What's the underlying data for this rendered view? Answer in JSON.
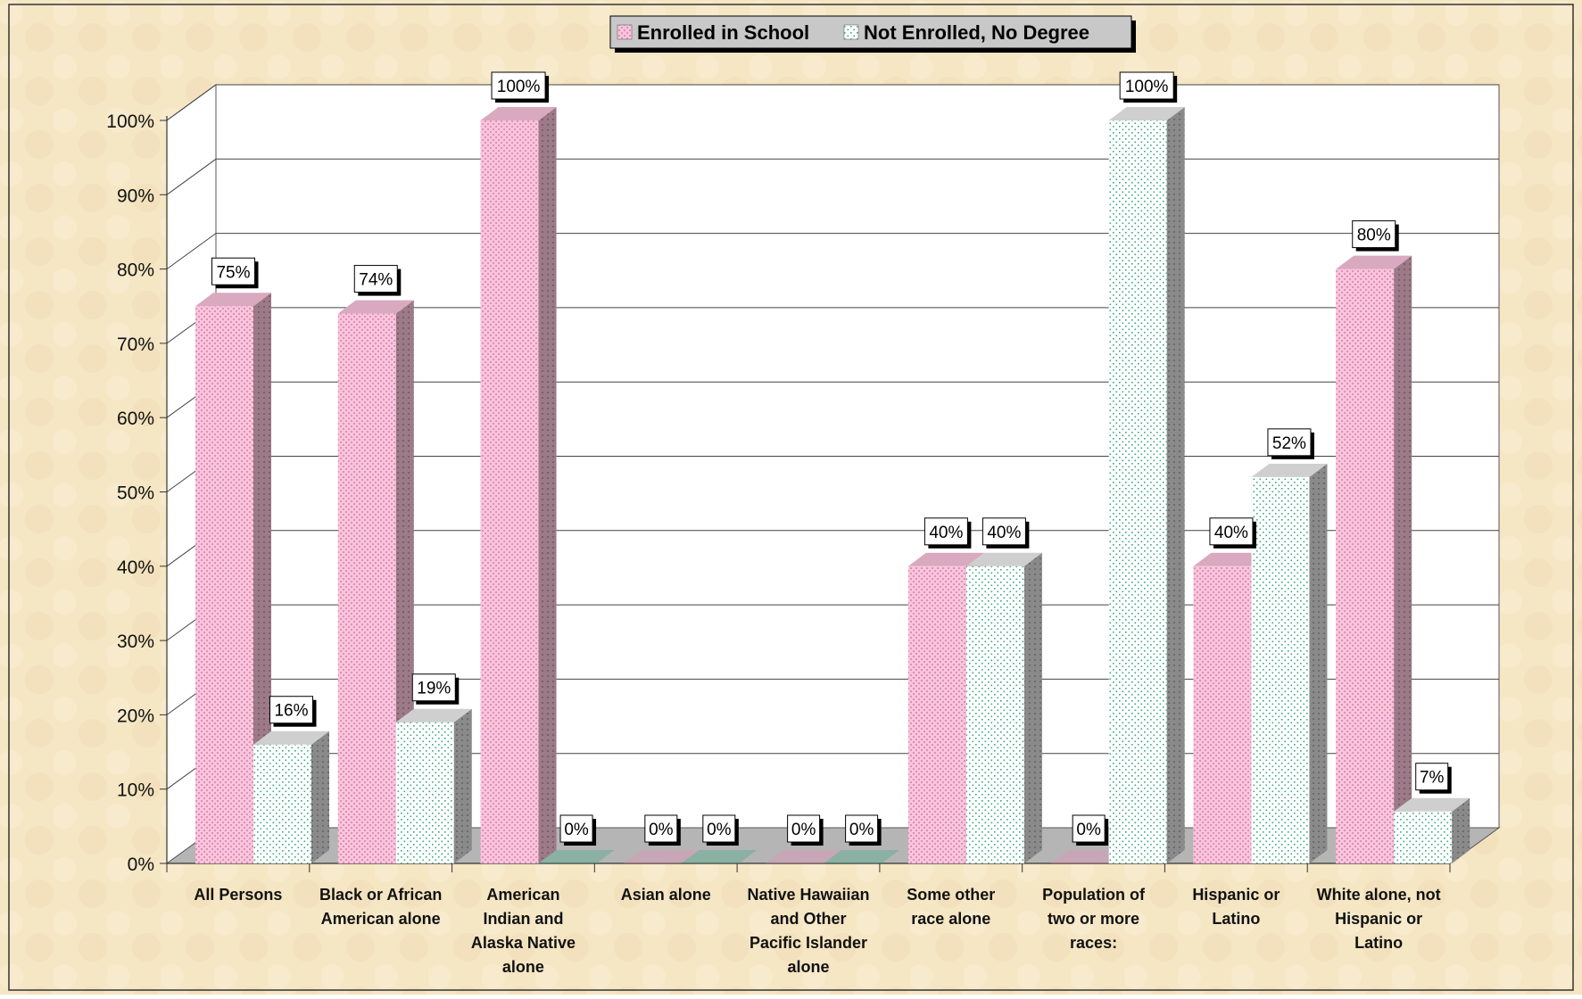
{
  "colors": {
    "background": "#f5e6c4",
    "plot_wall": "#ffffff",
    "floor": "#b5b5b5",
    "enrolled_fill": "#f6c6dc",
    "enrolled_dot": "#e98bb6",
    "enrolled_side": "#9c7a88",
    "enrolled_top": "#d9a9bf",
    "not_enrolled_fill": "#ffffff",
    "not_enrolled_dot": "#3aa882",
    "not_enrolled_side": "#8a8a8a",
    "not_enrolled_top": "#cfcfcf"
  },
  "chart_data": {
    "type": "bar",
    "title": "",
    "xlabel": "",
    "ylabel": "",
    "ylim": [
      0,
      100
    ],
    "y_ticks": [
      "0%",
      "10%",
      "20%",
      "30%",
      "40%",
      "50%",
      "60%",
      "70%",
      "80%",
      "90%",
      "100%"
    ],
    "legend_position": "top-center",
    "grid": true,
    "categories": [
      [
        "All Persons"
      ],
      [
        "Black or African",
        "American alone"
      ],
      [
        "American",
        "Indian and",
        "Alaska Native",
        "alone"
      ],
      [
        "Asian alone"
      ],
      [
        "Native Hawaiian",
        "and Other",
        "Pacific Islander",
        "alone"
      ],
      [
        "Some other",
        "race alone"
      ],
      [
        "Population of",
        "two or more",
        "races:"
      ],
      [
        "Hispanic or",
        "Latino"
      ],
      [
        "White alone, not",
        "Hispanic or",
        "Latino"
      ]
    ],
    "series": [
      {
        "name": "Enrolled in School",
        "values": [
          75,
          74,
          100,
          0,
          0,
          40,
          0,
          40,
          80
        ],
        "labels": [
          "75%",
          "74%",
          "100%",
          "0%",
          "0%",
          "40%",
          "0%",
          "40%",
          "80%"
        ]
      },
      {
        "name": "Not Enrolled, No Degree",
        "values": [
          16,
          19,
          0,
          0,
          0,
          40,
          100,
          52,
          7
        ],
        "labels": [
          "16%",
          "19%",
          "0%",
          "0%",
          "0%",
          "40%",
          "100%",
          "52%",
          "7%"
        ]
      }
    ]
  }
}
